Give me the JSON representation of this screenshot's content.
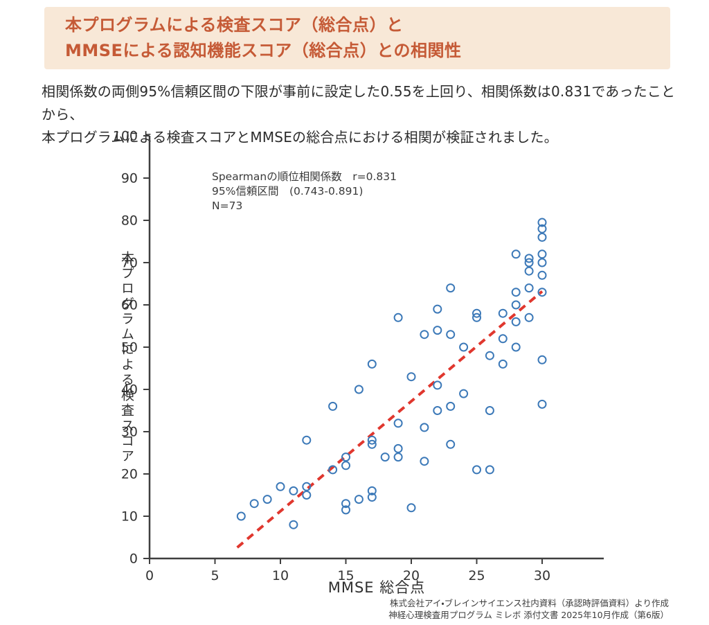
{
  "header": {
    "title_lines": [
      "本プログラムによる検査スコア（総合点）と",
      "MMSEによる認知機能スコア（総合点）との相関性"
    ]
  },
  "intro": {
    "lines": [
      "相関係数の両側95%信頼区間の下限が事前に設定した0.55を上回り、相関係数は0.831であったことから、",
      "本プログラムによる検査スコアとMMSEの総合点における相関が検証されました。"
    ]
  },
  "chart_data": {
    "type": "scatter",
    "title": "",
    "xlabel": "MMSE 総合点",
    "ylabel": "本プログラムによる検査スコア",
    "xlim": [
      0,
      35
    ],
    "ylim": [
      0,
      100
    ],
    "x_ticks": [
      0,
      5,
      10,
      15,
      20,
      25,
      30
    ],
    "y_ticks": [
      0,
      10,
      20,
      30,
      40,
      50,
      60,
      70,
      80,
      90,
      100
    ],
    "grid": false,
    "annotation": {
      "line1": "Spearmanの順位相関係数　r=0.831",
      "line2": "95%信頼区間　(0.743-0.891)",
      "line3": "N=73"
    },
    "marker": {
      "shape": "open-circle",
      "color": "#3c79b8"
    },
    "trend_line": {
      "style": "dashed",
      "color": "#e0372e",
      "start": [
        6.7,
        2.6
      ],
      "end": [
        30,
        63.2
      ]
    },
    "axis_color": "#3f3f3f",
    "points": [
      [
        7,
        10
      ],
      [
        8,
        13
      ],
      [
        9,
        14
      ],
      [
        10,
        17
      ],
      [
        11,
        8
      ],
      [
        11,
        16
      ],
      [
        12,
        15
      ],
      [
        12,
        17
      ],
      [
        12,
        28
      ],
      [
        14,
        21
      ],
      [
        14,
        36
      ],
      [
        15,
        11.5
      ],
      [
        15,
        13
      ],
      [
        15,
        22
      ],
      [
        15,
        24
      ],
      [
        16,
        14
      ],
      [
        16,
        40
      ],
      [
        17,
        14.5
      ],
      [
        17,
        16
      ],
      [
        17,
        27
      ],
      [
        17,
        28
      ],
      [
        17,
        46
      ],
      [
        18,
        24
      ],
      [
        19,
        24
      ],
      [
        19,
        26
      ],
      [
        19,
        32
      ],
      [
        19,
        57
      ],
      [
        20,
        12
      ],
      [
        20,
        43
      ],
      [
        21,
        23
      ],
      [
        21,
        31
      ],
      [
        21,
        53
      ],
      [
        22,
        35
      ],
      [
        22,
        41
      ],
      [
        22,
        54
      ],
      [
        22,
        59
      ],
      [
        23,
        27
      ],
      [
        23,
        36
      ],
      [
        23,
        53
      ],
      [
        23,
        64
      ],
      [
        24,
        39
      ],
      [
        24,
        50
      ],
      [
        25,
        21
      ],
      [
        25,
        57
      ],
      [
        25,
        58
      ],
      [
        26,
        21
      ],
      [
        26,
        35
      ],
      [
        26,
        48
      ],
      [
        27,
        46
      ],
      [
        27,
        52
      ],
      [
        27,
        58
      ],
      [
        28,
        50
      ],
      [
        28,
        56
      ],
      [
        28,
        60
      ],
      [
        28,
        63
      ],
      [
        28,
        72
      ],
      [
        29,
        57
      ],
      [
        29,
        64
      ],
      [
        29,
        68
      ],
      [
        29,
        70
      ],
      [
        29,
        71
      ],
      [
        30,
        36.5
      ],
      [
        30,
        47
      ],
      [
        30,
        63
      ],
      [
        30,
        67
      ],
      [
        30,
        70
      ],
      [
        30,
        72
      ],
      [
        30,
        76
      ],
      [
        30,
        78
      ],
      [
        30,
        79.5
      ]
    ]
  },
  "footer": {
    "lines": [
      "株式会社アイ・ブレインサイエンス社内資料（承認時評価資料）より作成",
      "神経心理検査用プログラム ミレボ 添付文書 2025年10月作成（第6版）"
    ]
  }
}
